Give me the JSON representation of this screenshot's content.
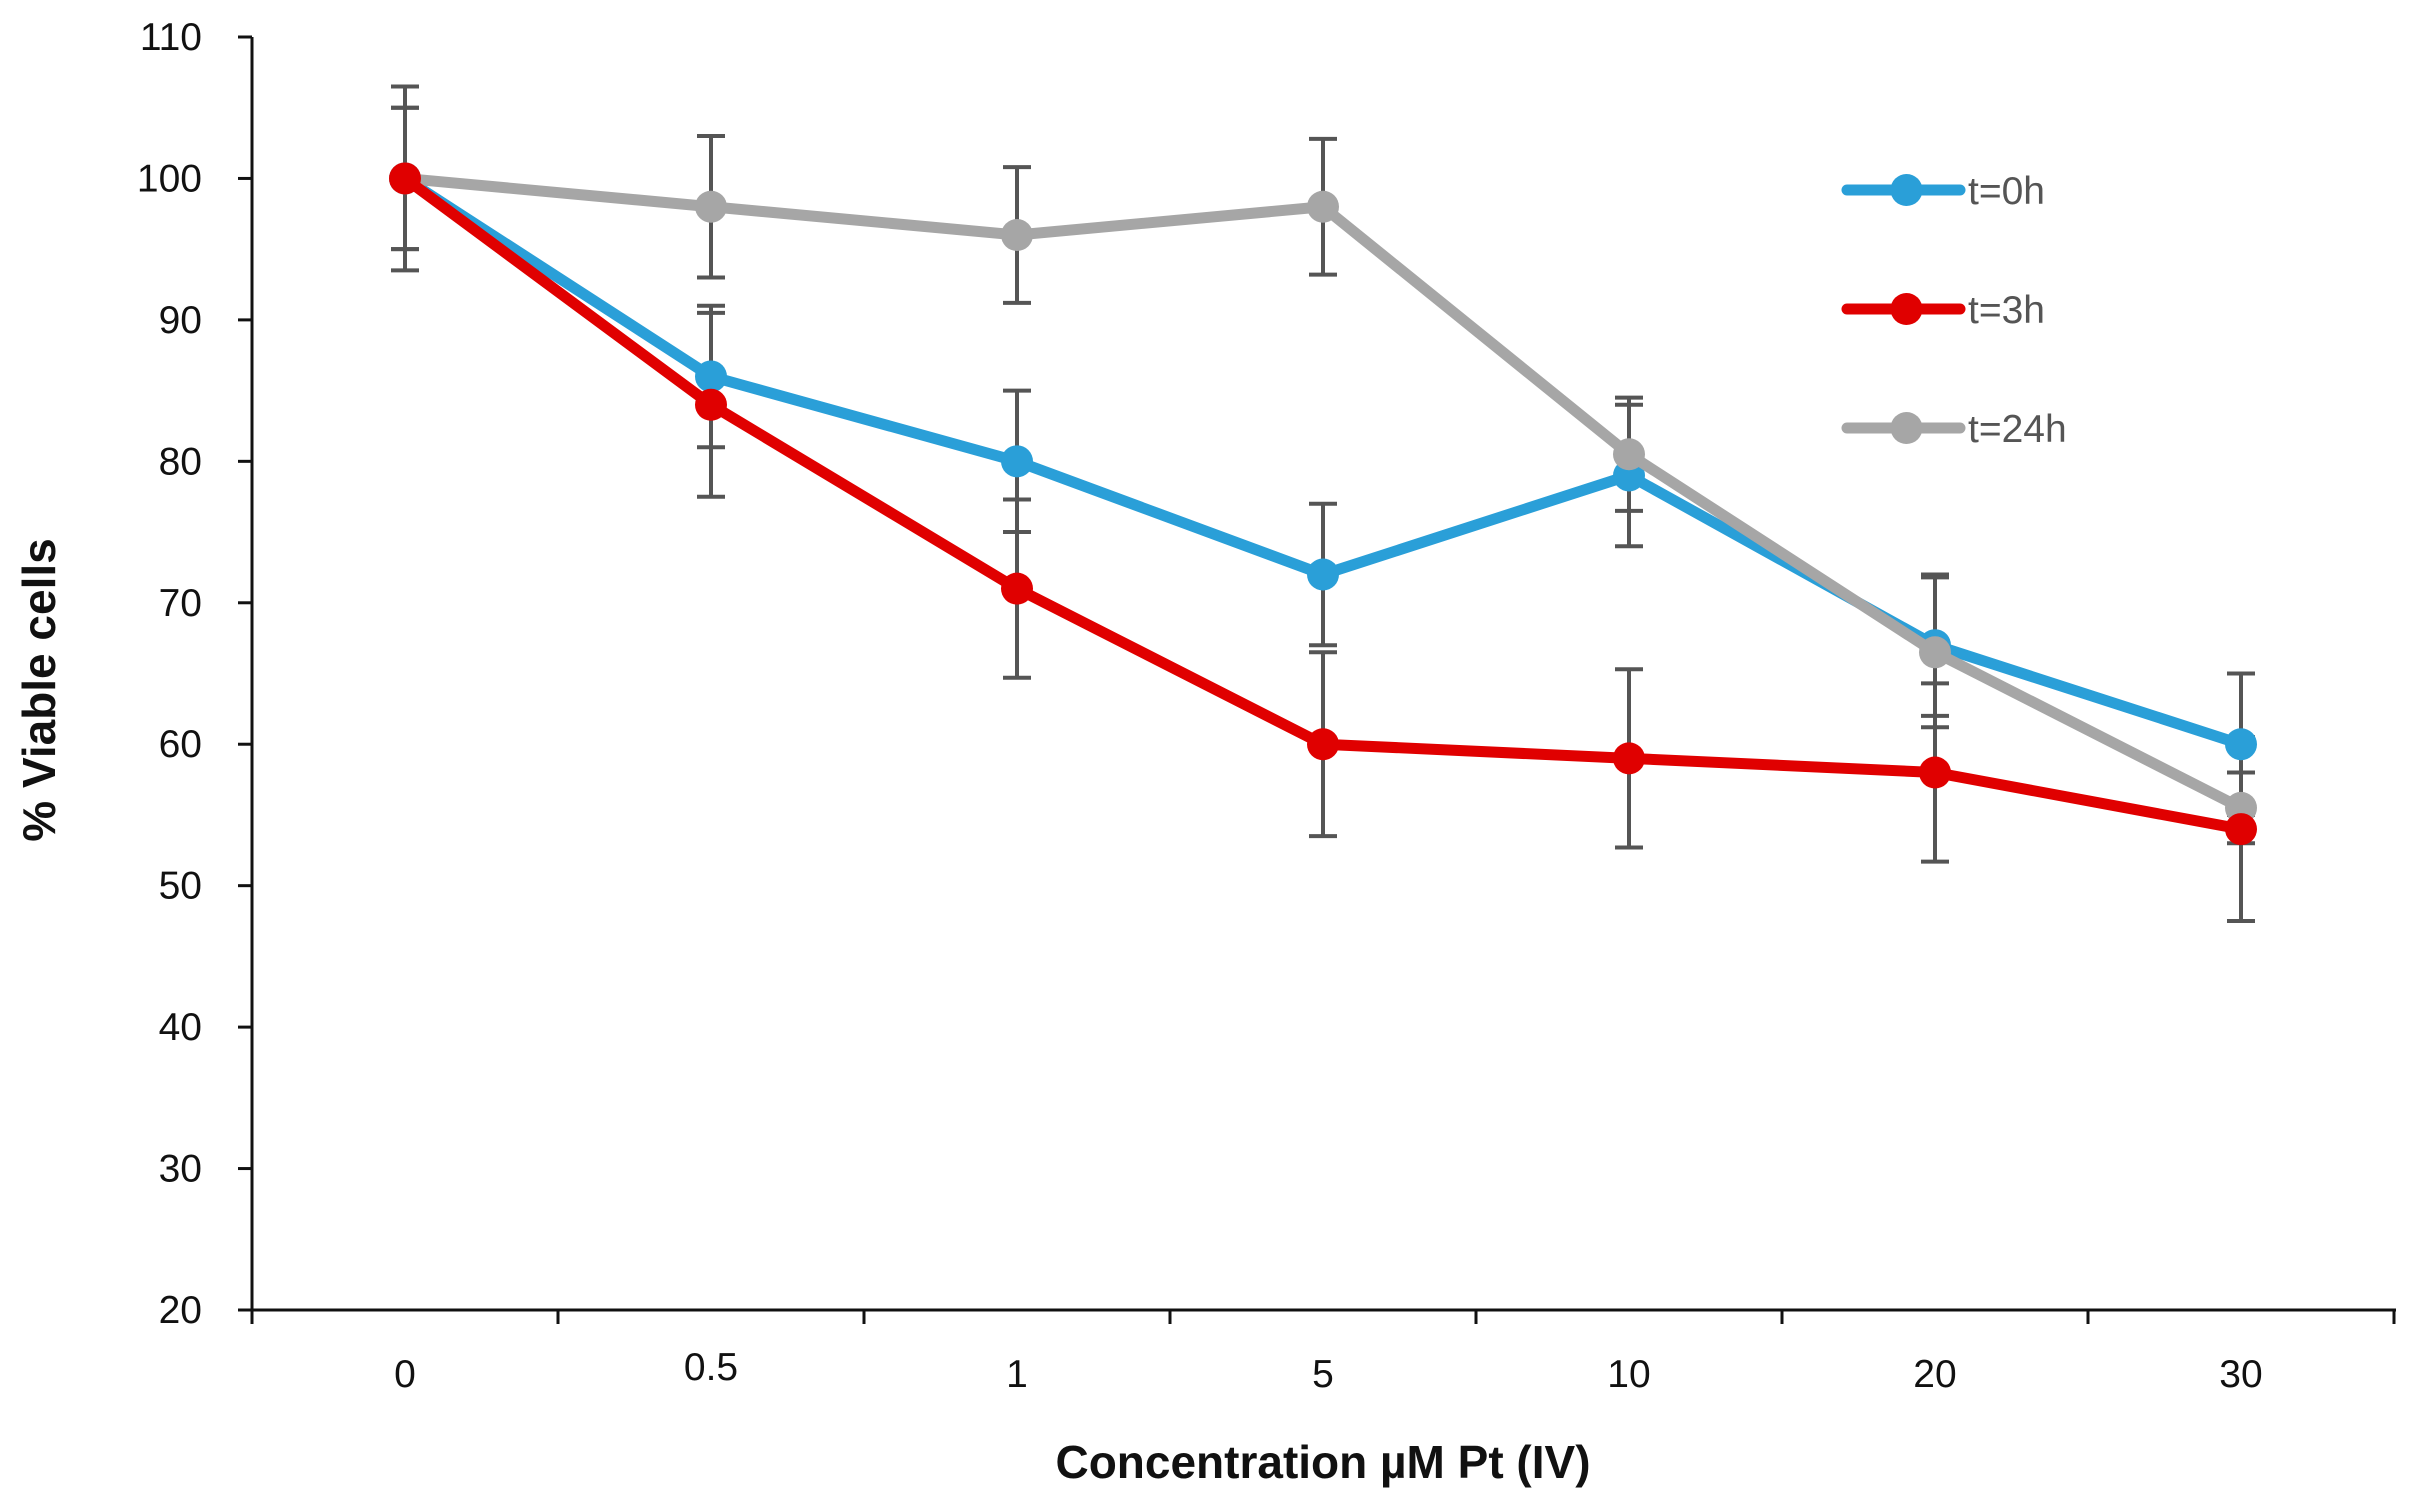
{
  "chart_data": {
    "type": "line",
    "title": "",
    "xlabel": "Concentration µM Pt (IV)",
    "ylabel": "% Viable cells",
    "categories": [
      "0",
      "0.5",
      "1",
      "5",
      "10",
      "20",
      "30"
    ],
    "ylim": [
      20,
      110
    ],
    "yticks": [
      20,
      30,
      40,
      50,
      60,
      70,
      80,
      90,
      100,
      110
    ],
    "grid": false,
    "legend_position": "top-right",
    "series": [
      {
        "name": "t=0h",
        "color": "#2a9fd8",
        "values": [
          100,
          86,
          80,
          72,
          79,
          67,
          60
        ],
        "errors": [
          5,
          5,
          5,
          5,
          5,
          5,
          5
        ]
      },
      {
        "name": "t=3h",
        "color": "#e00000",
        "values": [
          100,
          84,
          71,
          60,
          59,
          58,
          54
        ],
        "errors": [
          5,
          6.5,
          6.3,
          6.5,
          6.3,
          6.3,
          6.5
        ]
      },
      {
        "name": "t=24h",
        "color": "#a6a6a6",
        "values": [
          100,
          98,
          96,
          98,
          80.5,
          66.5,
          55.5
        ],
        "errors": [
          6.5,
          5,
          4.8,
          4.8,
          4,
          5.3,
          2.5
        ]
      }
    ]
  }
}
